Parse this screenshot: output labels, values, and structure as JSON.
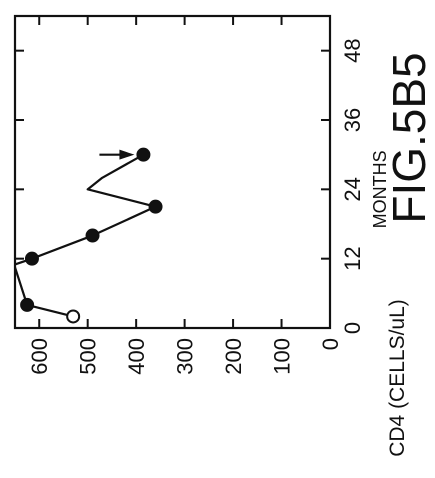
{
  "figure_label": "FIG.5B5",
  "chart_data": {
    "type": "line",
    "orientation": "rotated-90-ccw",
    "xlabel": "MONTHS",
    "ylabel": "CD4 (CELLS/uL)",
    "xlim": [
      0,
      54
    ],
    "ylim": [
      0,
      650
    ],
    "x_ticks": [
      0,
      12,
      24,
      36,
      48
    ],
    "x_tick_labels": [
      "0",
      "12",
      "24",
      "36",
      "48"
    ],
    "y_ticks": [
      0,
      100,
      200,
      300,
      400,
      500,
      600
    ],
    "y_tick_labels": [
      "0",
      "100",
      "200",
      "300",
      "400",
      "500",
      "600"
    ],
    "grid": false,
    "series": [
      {
        "values_trace": [
          {
            "x": 2,
            "y": 530
          },
          {
            "x": 4,
            "y": 625
          },
          {
            "x": 10.5,
            "y": 650
          }
        ]
      },
      {
        "values_trace": [
          {
            "x": 11,
            "y": 650
          },
          {
            "x": 12,
            "y": 615
          },
          {
            "x": 16,
            "y": 490
          },
          {
            "x": 21,
            "y": 360
          },
          {
            "x": 24,
            "y": 500
          },
          {
            "x": 26,
            "y": 470
          },
          {
            "x": 30,
            "y": 385
          }
        ]
      }
    ],
    "markers": [
      {
        "x": 2,
        "y": 530,
        "style": "open"
      },
      {
        "x": 4,
        "y": 625,
        "style": "filled"
      },
      {
        "x": 12,
        "y": 615,
        "style": "filled"
      },
      {
        "x": 16,
        "y": 490,
        "style": "filled"
      },
      {
        "x": 21,
        "y": 360,
        "style": "filled"
      },
      {
        "x": 30,
        "y": 385,
        "style": "filled"
      }
    ],
    "annotation": {
      "type": "arrow",
      "points_to": {
        "x": 30,
        "y": 385
      }
    }
  }
}
